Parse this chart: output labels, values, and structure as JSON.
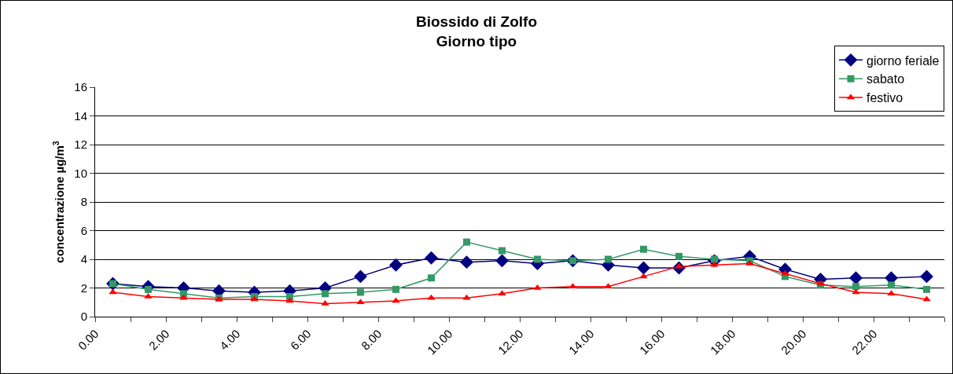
{
  "chart_data": {
    "type": "line",
    "title": "Biossido di Zolfo\nGiorno tipo",
    "ylabel": "concentrazione µg/m$^{3}$",
    "x": [
      0.5,
      1.5,
      2.5,
      3.5,
      4.5,
      5.5,
      6.5,
      7.5,
      8.5,
      9.5,
      10.5,
      11.5,
      12.5,
      13.5,
      14.5,
      15.5,
      16.5,
      17.5,
      18.5,
      19.5,
      20.5,
      21.5,
      22.5,
      23.5
    ],
    "xlim": [
      0,
      24
    ],
    "xticks": [
      {
        "value": 0,
        "label": "0.00"
      },
      {
        "value": 1,
        "label": null
      },
      {
        "value": 2,
        "label": "2.00"
      },
      {
        "value": 3,
        "label": null
      },
      {
        "value": 4,
        "label": "4.00"
      },
      {
        "value": 5,
        "label": null
      },
      {
        "value": 6,
        "label": "6.00"
      },
      {
        "value": 7,
        "label": null
      },
      {
        "value": 8,
        "label": "8.00"
      },
      {
        "value": 9,
        "label": null
      },
      {
        "value": 10,
        "label": "10.00"
      },
      {
        "value": 11,
        "label": null
      },
      {
        "value": 12,
        "label": "12.00"
      },
      {
        "value": 13,
        "label": null
      },
      {
        "value": 14,
        "label": "14.00"
      },
      {
        "value": 15,
        "label": null
      },
      {
        "value": 16,
        "label": "16.00"
      },
      {
        "value": 17,
        "label": null
      },
      {
        "value": 18,
        "label": "18.00"
      },
      {
        "value": 19,
        "label": null
      },
      {
        "value": 20,
        "label": "20.00"
      },
      {
        "value": 21,
        "label": null
      },
      {
        "value": 22,
        "label": "22.00"
      },
      {
        "value": 23,
        "label": null
      },
      {
        "value": 24,
        "label": null
      }
    ],
    "ylim": [
      0,
      16
    ],
    "yticks": [
      0,
      2,
      4,
      6,
      8,
      10,
      12,
      14,
      16
    ],
    "grid": "y",
    "legend": "top right",
    "line_style": "solid",
    "series": [
      {
        "name": "giorno feriale",
        "color": "#000080",
        "marker": "diamond",
        "values": [
          2.3,
          2.1,
          2.0,
          1.8,
          1.7,
          1.8,
          2.0,
          2.8,
          3.6,
          4.1,
          3.8,
          3.9,
          3.7,
          3.9,
          3.6,
          3.4,
          3.4,
          3.9,
          4.2,
          3.3,
          2.6,
          2.7,
          2.7,
          2.8
        ]
      },
      {
        "name": "sabato",
        "color": "#339966",
        "marker": "square",
        "values": [
          2.3,
          1.9,
          1.6,
          1.3,
          1.4,
          1.4,
          1.6,
          1.7,
          1.9,
          2.7,
          5.2,
          4.6,
          4.0,
          3.9,
          4.0,
          4.7,
          4.2,
          4.0,
          3.9,
          2.8,
          2.2,
          2.1,
          2.2,
          1.9
        ]
      },
      {
        "name": "festivo",
        "color": "#ff0000",
        "marker": "triangle",
        "values": [
          1.7,
          1.4,
          1.3,
          1.2,
          1.2,
          1.1,
          0.9,
          1.0,
          1.1,
          1.3,
          1.3,
          1.6,
          2.0,
          2.1,
          2.1,
          2.8,
          3.5,
          3.6,
          3.7,
          3.0,
          2.3,
          1.7,
          1.6,
          1.2
        ]
      }
    ]
  }
}
